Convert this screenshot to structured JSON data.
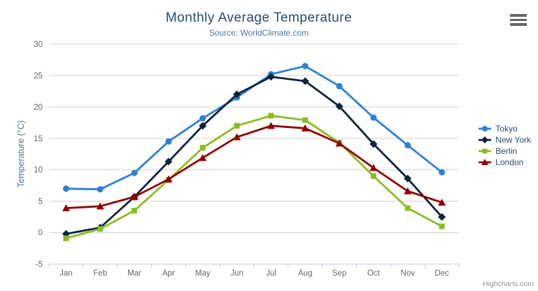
{
  "chart": {
    "title": "Monthly Average Temperature",
    "subtitle": "Source: WorldClimate.com",
    "y_axis_title": "Temperature (°C)",
    "credits": "Highcharts.com",
    "export_menu_icon": "hamburger-icon"
  },
  "chart_data": {
    "type": "line",
    "title": "Monthly Average Temperature",
    "subtitle": "Source: WorldClimate.com",
    "categories": [
      "Jan",
      "Feb",
      "Mar",
      "Apr",
      "May",
      "Jun",
      "Jul",
      "Aug",
      "Sep",
      "Oct",
      "Nov",
      "Dec"
    ],
    "series": [
      {
        "name": "Tokyo",
        "color": "#2f7ed8",
        "marker": "circle",
        "values": [
          7.0,
          6.9,
          9.5,
          14.5,
          18.2,
          21.5,
          25.2,
          26.5,
          23.3,
          18.3,
          13.9,
          9.6
        ]
      },
      {
        "name": "New York",
        "color": "#0d233a",
        "marker": "diamond",
        "values": [
          -0.2,
          0.8,
          5.7,
          11.3,
          17.0,
          22.0,
          24.8,
          24.1,
          20.1,
          14.1,
          8.6,
          2.5
        ]
      },
      {
        "name": "Berlin",
        "color": "#8bbc21",
        "marker": "square",
        "values": [
          -0.9,
          0.6,
          3.5,
          8.4,
          13.5,
          17.0,
          18.6,
          17.9,
          14.3,
          9.0,
          3.9,
          1.0
        ]
      },
      {
        "name": "London",
        "color": "#910000",
        "marker": "triangle",
        "values": [
          3.9,
          4.2,
          5.7,
          8.5,
          11.9,
          15.2,
          17.0,
          16.6,
          14.2,
          10.3,
          6.6,
          4.8
        ]
      }
    ],
    "xlabel": "",
    "ylabel": "Temperature (°C)",
    "ylim": [
      -5,
      30
    ],
    "ytick_interval": 5,
    "yticks": [
      -5,
      0,
      5,
      10,
      15,
      20,
      25,
      30
    ],
    "grid": true,
    "legend_position": "right",
    "colors": {
      "grid_line": "#d0d0d0",
      "axis_line": "#c0d0e0",
      "axis_label": "#666666",
      "title": "#274b6d",
      "subtitle": "#4d759e",
      "legend_text": "#274b6d",
      "credits_text": "#909090",
      "burger": "#666666"
    }
  }
}
